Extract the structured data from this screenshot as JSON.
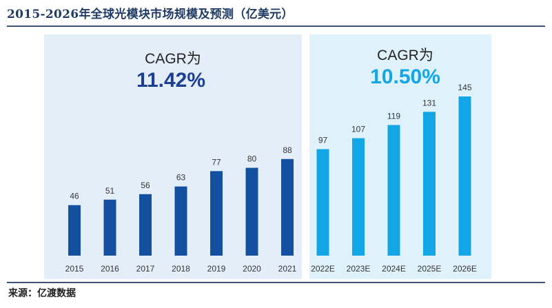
{
  "title": "2015-2026年全球光模块市场规模及预测（亿美元）",
  "source": "来源：亿渡数据",
  "colors": {
    "historical_bar": "#1450a0",
    "forecast_bar": "#12a6e6",
    "historical_panel": "#e4eef9",
    "forecast_panel": "#dff1fb",
    "historical_cagr": "#1c3f94",
    "forecast_cagr": "#12a6e6"
  },
  "chart_data": {
    "type": "bar",
    "title": "2015-2026年全球光模块市场规模及预测（亿美元）",
    "xlabel": "",
    "ylabel": "",
    "ylim": [
      0,
      150
    ],
    "grid": false,
    "categories": [
      "2015",
      "2016",
      "2017",
      "2018",
      "2019",
      "2020",
      "2021",
      "2022E",
      "2023E",
      "2024E",
      "2025E",
      "2026E"
    ],
    "values": [
      46,
      51,
      56,
      63,
      77,
      80,
      88,
      97,
      107,
      119,
      131,
      145
    ],
    "data_labels": [
      "46",
      "51",
      "56",
      "63",
      "77",
      "80",
      "88",
      "97",
      "107",
      "119",
      "131",
      "145"
    ],
    "forecast_start_index": 7,
    "annotations": [
      {
        "label": "CAGR为",
        "value": "11.42%",
        "segment": "historical"
      },
      {
        "label": "CAGR为",
        "value": "10.50%",
        "segment": "forecast"
      }
    ]
  }
}
